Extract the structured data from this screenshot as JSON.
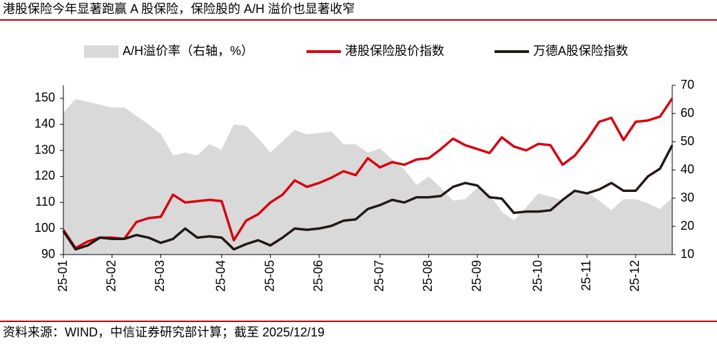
{
  "chart_data": {
    "type": "line",
    "title": "港股保险今年显著跑赢 A 股保险，保险股的 A/H 溢价也显著收窄",
    "source": "资料来源：WIND，中信证券研究部计算；截至 2025/12/19",
    "categories": [
      "25-01",
      null,
      null,
      null,
      "25-02",
      null,
      null,
      null,
      "25-03",
      null,
      null,
      null,
      null,
      "25-04",
      null,
      null,
      null,
      "25-05",
      null,
      null,
      null,
      "25-06",
      null,
      null,
      null,
      null,
      "25-07",
      null,
      null,
      null,
      "25-08",
      null,
      null,
      null,
      "25-09",
      null,
      null,
      null,
      null,
      "25-10",
      null,
      null,
      null,
      "25-11",
      null,
      null,
      null,
      "25-12",
      null,
      null,
      null
    ],
    "ylim": [
      90,
      155
    ],
    "yticks": [
      90,
      100,
      110,
      120,
      130,
      140,
      150
    ],
    "y2lim": [
      10,
      70
    ],
    "y2ticks": [
      10,
      20,
      30,
      40,
      50,
      60,
      70
    ],
    "series": [
      {
        "name": "A/H溢价率（右轴，%）",
        "type": "area",
        "axis": "y2",
        "color": "#d9d9d9",
        "values": [
          60,
          65,
          64,
          63,
          62,
          62,
          59,
          56,
          52.5,
          45,
          46,
          45,
          49,
          47,
          56,
          55.5,
          51,
          46,
          50,
          54,
          52.5,
          53,
          53.5,
          49,
          49,
          46,
          47.5,
          43.5,
          40,
          34.5,
          37.5,
          33.5,
          29,
          29.5,
          33.5,
          31,
          25,
          22,
          26.5,
          31.5,
          30.5,
          29,
          32.5,
          32,
          29,
          25.5,
          29.5,
          29.5,
          28,
          26,
          30
        ]
      },
      {
        "name": "港股保险股价指数",
        "type": "line",
        "color": "#d7000f",
        "values": [
          99.5,
          92.5,
          95,
          96.5,
          96.5,
          96,
          102.5,
          104,
          104.5,
          113,
          110,
          110.5,
          111,
          110.5,
          95.5,
          103,
          105.5,
          110,
          113,
          118.5,
          116,
          117.5,
          119.5,
          122,
          120.5,
          127,
          123.5,
          125.5,
          124.5,
          126.5,
          127,
          130.5,
          134.5,
          132,
          130.5,
          129,
          135,
          131.5,
          130,
          132.5,
          132,
          124.5,
          128,
          134,
          141,
          142.5,
          134,
          141,
          141.5,
          143,
          150
        ]
      },
      {
        "name": "万德A股保险指数",
        "type": "line",
        "color": "#231815",
        "values": [
          99,
          92,
          93.5,
          96.5,
          96,
          96,
          97.5,
          96.5,
          94.5,
          96,
          100,
          96.5,
          97,
          96.5,
          92,
          94,
          95.5,
          93.5,
          96.5,
          100,
          99.5,
          100,
          101,
          103,
          103.5,
          107.5,
          109,
          111,
          110,
          112,
          112,
          112.5,
          116,
          117.5,
          116.5,
          112,
          111.5,
          106,
          106.5,
          106.5,
          107,
          111,
          114.5,
          113.5,
          115,
          117.5,
          114.5,
          114.5,
          120,
          123,
          132
        ]
      }
    ]
  }
}
